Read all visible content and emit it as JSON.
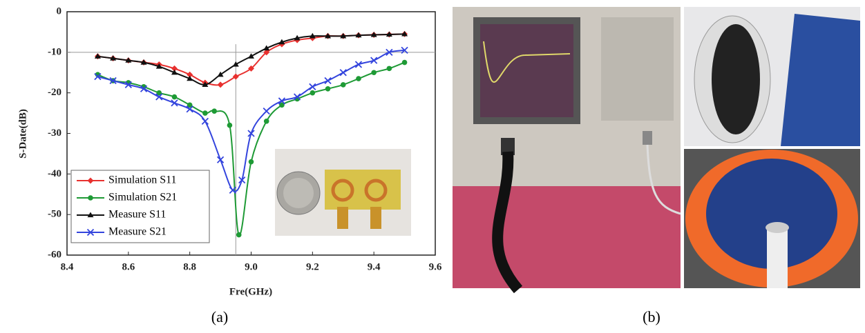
{
  "chart_data": {
    "type": "line",
    "x_label": "Fre(GHz)",
    "y_label": "S-Date(dB)",
    "xlim": [
      8.4,
      9.6
    ],
    "ylim": [
      -60,
      0
    ],
    "xticks": [
      8.4,
      8.6,
      8.8,
      {
        "value": 9,
        "label": "9.0"
      },
      9.2,
      9.4,
      9.6
    ],
    "yticks": [
      0,
      -10,
      -20,
      -30,
      -40,
      -50,
      -60
    ],
    "reference_x": 8.95,
    "reference_y": -10,
    "legend": "lower left",
    "series": [
      {
        "name": "Simulation S11",
        "color": "#e8312f",
        "marker": "diamond",
        "x": [
          8.5,
          8.55,
          8.6,
          8.65,
          8.7,
          8.75,
          8.8,
          8.85,
          8.9,
          8.95,
          9.0,
          9.05,
          9.1,
          9.15,
          9.2,
          9.25,
          9.3,
          9.35,
          9.4,
          9.45,
          9.5
        ],
        "values": [
          -11,
          -11.5,
          -12,
          -12.5,
          -13,
          -14,
          -15.5,
          -17.5,
          -18,
          -16,
          -14,
          -10,
          -8,
          -7,
          -6.5,
          -6,
          -6,
          -5.8,
          -5.7,
          -5.6,
          -5.5
        ]
      },
      {
        "name": "Simulation S21",
        "color": "#1e9a35",
        "marker": "circle",
        "x": [
          8.5,
          8.55,
          8.6,
          8.65,
          8.7,
          8.75,
          8.8,
          8.85,
          8.88,
          8.93,
          8.96,
          9.0,
          9.05,
          9.1,
          9.15,
          9.2,
          9.25,
          9.3,
          9.35,
          9.4,
          9.45,
          9.5
        ],
        "values": [
          -15.5,
          -17,
          -17.5,
          -18.5,
          -20,
          -21,
          -23,
          -25,
          -24.5,
          -28,
          -55,
          -37,
          -27,
          -23,
          -21.5,
          -20,
          -19,
          -18,
          -16.5,
          -15,
          -14,
          -12.5
        ]
      },
      {
        "name": "Measure S11",
        "color": "#111111",
        "marker": "triangle",
        "x": [
          8.5,
          8.55,
          8.6,
          8.65,
          8.7,
          8.75,
          8.8,
          8.85,
          8.9,
          8.95,
          9.0,
          9.05,
          9.1,
          9.15,
          9.2,
          9.25,
          9.3,
          9.35,
          9.4,
          9.45,
          9.5
        ],
        "values": [
          -11,
          -11.5,
          -12,
          -12.5,
          -13.5,
          -15,
          -16.5,
          -18,
          -15.5,
          -13,
          -11,
          -9,
          -7.5,
          -6.5,
          -6,
          -6,
          -6,
          -5.8,
          -5.7,
          -5.6,
          -5.5
        ]
      },
      {
        "name": "Measure S21",
        "color": "#3344dd",
        "marker": "x",
        "x": [
          8.5,
          8.55,
          8.6,
          8.65,
          8.7,
          8.75,
          8.8,
          8.85,
          8.9,
          8.94,
          8.97,
          9.0,
          9.05,
          9.1,
          9.15,
          9.2,
          9.25,
          9.3,
          9.35,
          9.4,
          9.45,
          9.5
        ],
        "values": [
          -16,
          -17,
          -18,
          -19,
          -21,
          -22.5,
          -24,
          -27,
          -36.5,
          -44,
          -41.5,
          -30,
          -24.5,
          -22,
          -21,
          -18.5,
          -17,
          -15,
          -13,
          -12,
          -10,
          -9.5
        ]
      }
    ]
  },
  "captions": [
    "(a)",
    "(b)"
  ]
}
